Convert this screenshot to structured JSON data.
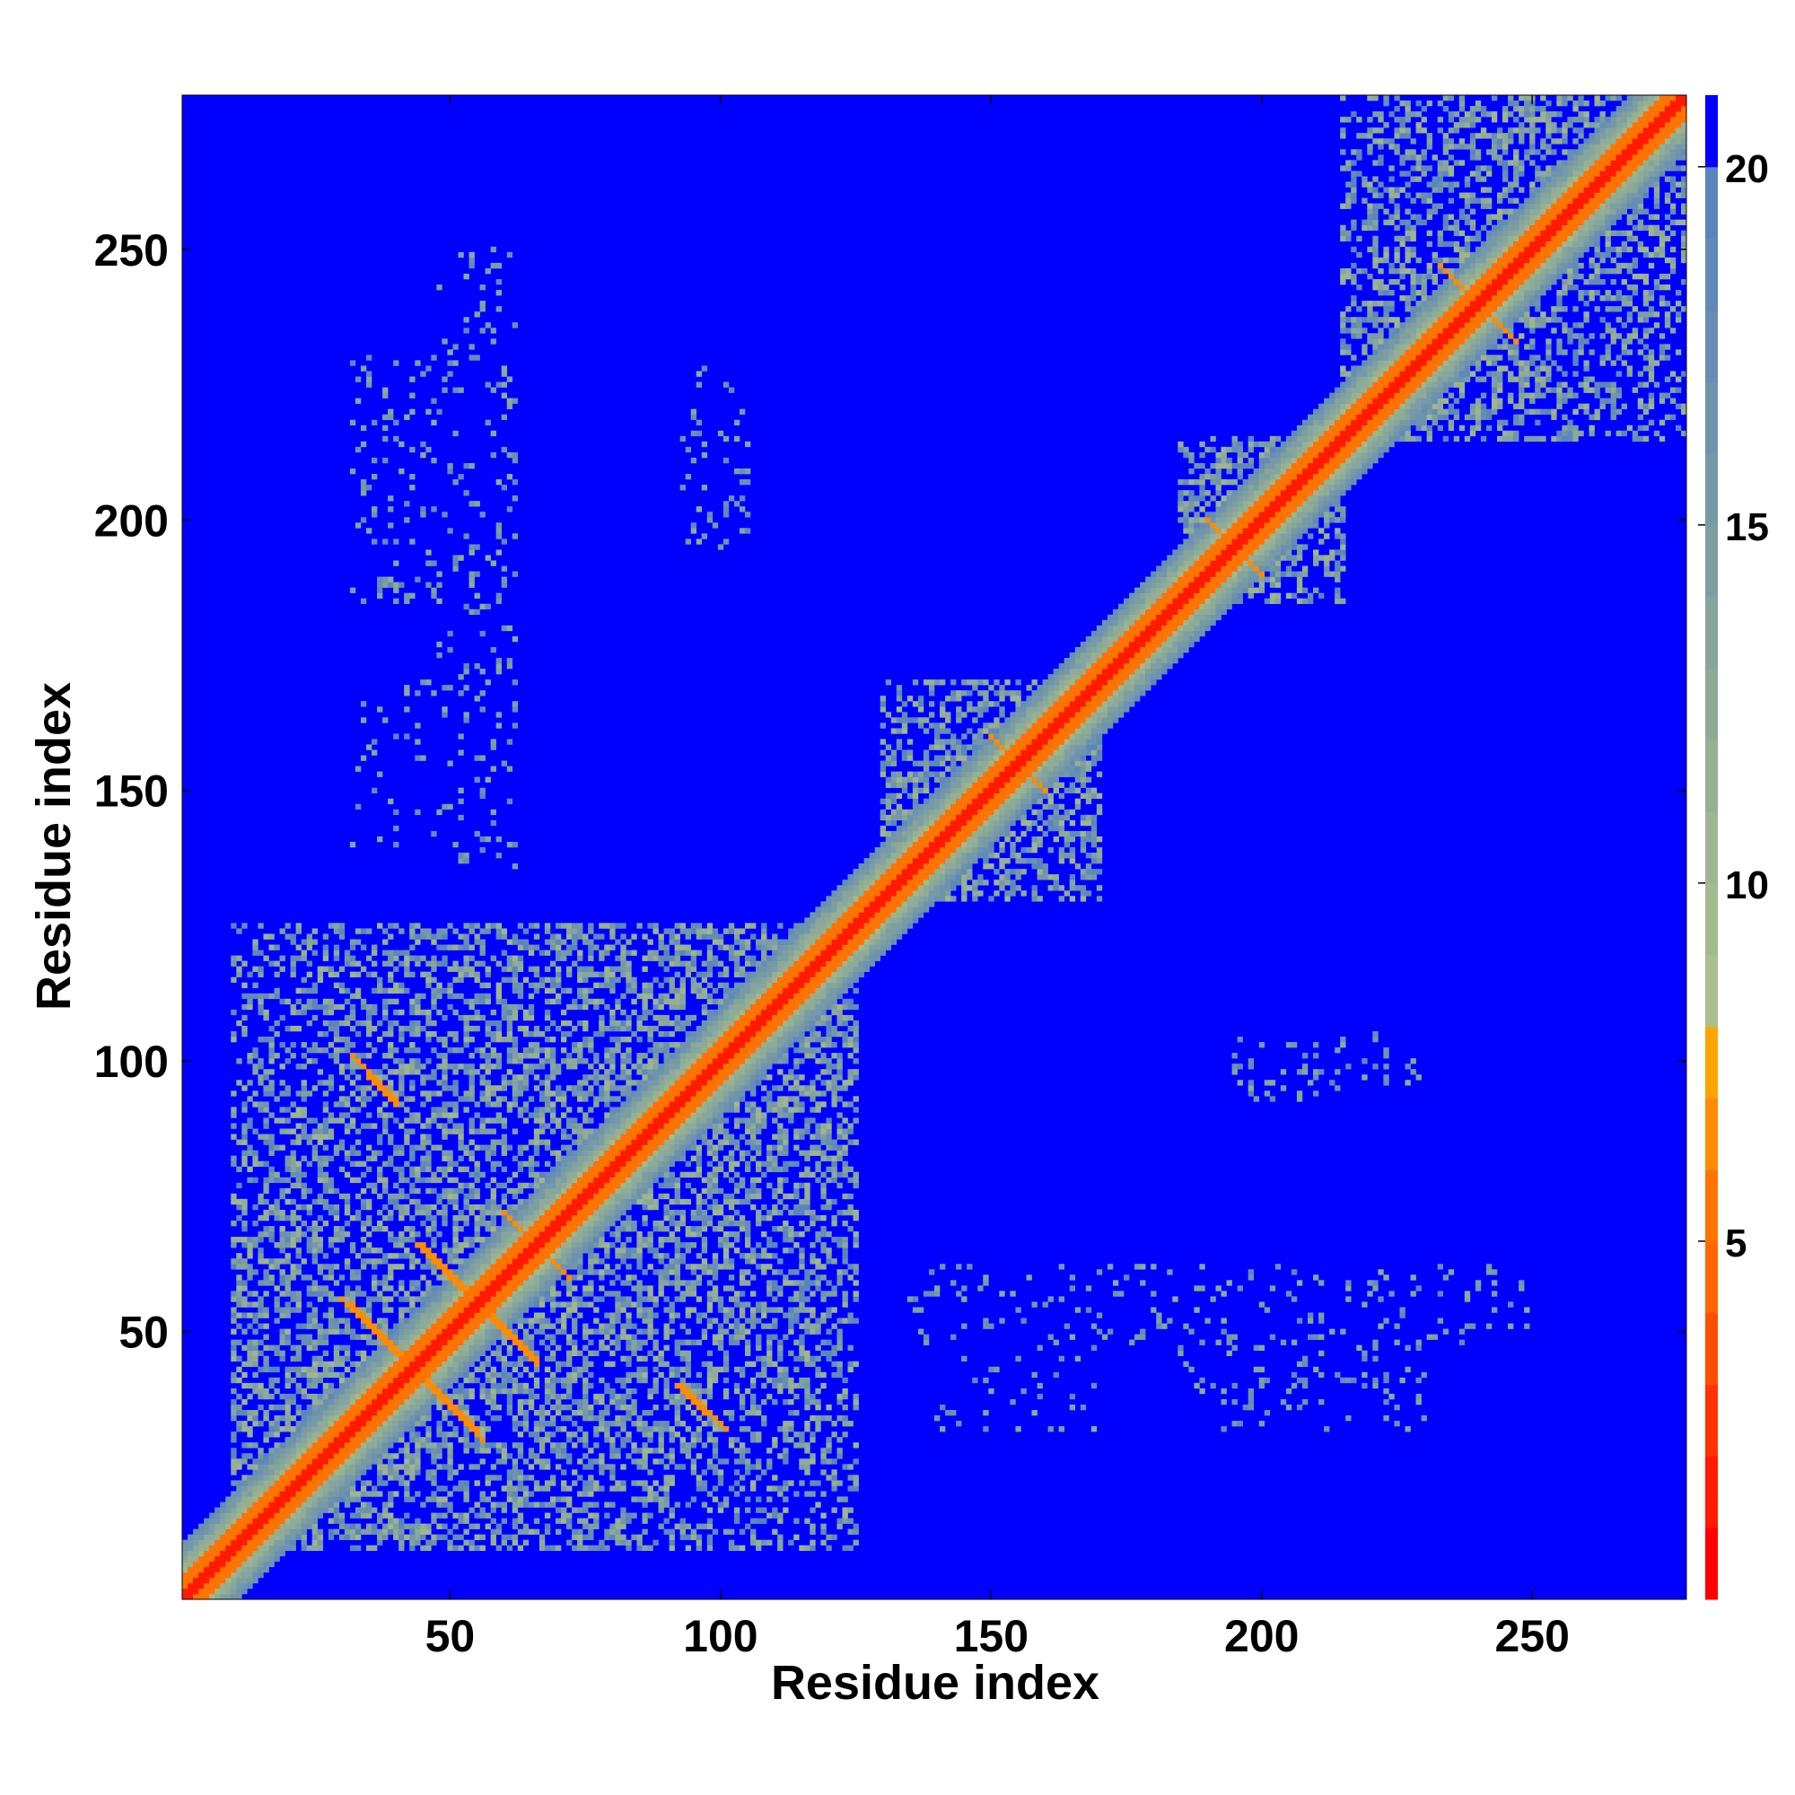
{
  "chart_data": {
    "type": "heatmap",
    "title": "",
    "xlabel": "Residue index",
    "ylabel": "Residue index",
    "xlim": [
      1,
      278
    ],
    "ylim": [
      1,
      278
    ],
    "x_ticks": [
      50,
      100,
      150,
      200,
      250
    ],
    "y_ticks": [
      50,
      100,
      150,
      200,
      250
    ],
    "x_tick_labels": [
      "50",
      "100",
      "150",
      "200",
      "250"
    ],
    "y_tick_labels": [
      "50",
      "100",
      "150",
      "200",
      "250"
    ],
    "n_residues": 278,
    "colorbar": {
      "min": 0,
      "max": 21,
      "ticks": [
        5,
        10,
        15,
        20
      ],
      "tick_labels": [
        "5",
        "10",
        "15",
        "20"
      ],
      "levels": [
        {
          "from": 0,
          "to": 1,
          "color": "#ff0000"
        },
        {
          "from": 1,
          "to": 2,
          "color": "#ff1a00"
        },
        {
          "from": 2,
          "to": 3,
          "color": "#ff3300"
        },
        {
          "from": 3,
          "to": 4,
          "color": "#ff4d00"
        },
        {
          "from": 4,
          "to": 5,
          "color": "#ff6600"
        },
        {
          "from": 5,
          "to": 6,
          "color": "#ff7300"
        },
        {
          "from": 6,
          "to": 7,
          "color": "#ff8c00"
        },
        {
          "from": 7,
          "to": 8,
          "color": "#ffa500"
        },
        {
          "from": 8,
          "to": 9,
          "color": "#a9c08c"
        },
        {
          "from": 9,
          "to": 10,
          "color": "#a2bb8e"
        },
        {
          "from": 10,
          "to": 11,
          "color": "#9db690"
        },
        {
          "from": 11,
          "to": 12,
          "color": "#96b094"
        },
        {
          "from": 12,
          "to": 13,
          "color": "#8eab98"
        },
        {
          "from": 13,
          "to": 14,
          "color": "#86a59c"
        },
        {
          "from": 14,
          "to": 15,
          "color": "#7e9fa2"
        },
        {
          "from": 15,
          "to": 16,
          "color": "#7699a8"
        },
        {
          "from": 16,
          "to": 17,
          "color": "#6e93ae"
        },
        {
          "from": 17,
          "to": 18,
          "color": "#678db4"
        },
        {
          "from": 18,
          "to": 19,
          "color": "#6088b8"
        },
        {
          "from": 19,
          "to": 20,
          "color": "#5a84bc"
        },
        {
          "from": 20,
          "to": 21,
          "color": "#0000ff"
        }
      ]
    },
    "background_value": 21,
    "diagonal_band": {
      "width_core": 1.5,
      "width_orange": 4,
      "width_green": 10
    },
    "domains": [
      {
        "start": 10,
        "end": 125,
        "density": 0.55
      },
      {
        "start": 130,
        "end": 170,
        "density": 0.6
      },
      {
        "start": 185,
        "end": 215,
        "density": 0.55
      },
      {
        "start": 215,
        "end": 278,
        "density": 0.5
      }
    ],
    "strand_contacts": [
      {
        "i_start": 32,
        "i_end": 40,
        "j_start": 101,
        "j_end": 93,
        "value": 6
      },
      {
        "i_start": 30,
        "i_end": 55,
        "j_start": 56,
        "j_end": 32,
        "value": 6
      },
      {
        "i_start": 44,
        "i_end": 66,
        "j_start": 66,
        "j_end": 45,
        "value": 6
      },
      {
        "i_start": 60,
        "i_end": 72,
        "j_start": 72,
        "j_end": 60,
        "value": 6
      },
      {
        "i_start": 92,
        "i_end": 100,
        "j_start": 40,
        "j_end": 33,
        "value": 6
      },
      {
        "i_start": 233,
        "i_end": 247,
        "j_start": 247,
        "j_end": 233,
        "value": 6
      },
      {
        "i_start": 190,
        "i_end": 200,
        "j_start": 200,
        "j_end": 190,
        "value": 6
      },
      {
        "i_start": 150,
        "i_end": 160,
        "j_start": 160,
        "j_end": 150,
        "value": 6
      }
    ],
    "sparse_blocks": [
      {
        "x": [
          32,
          62
        ],
        "y": [
          185,
          230
        ],
        "density": 0.12
      },
      {
        "x": [
          32,
          62
        ],
        "y": [
          140,
          170
        ],
        "density": 0.08
      },
      {
        "x": [
          93,
          104
        ],
        "y": [
          195,
          215
        ],
        "density": 0.15
      },
      {
        "x": [
          195,
          230
        ],
        "y": [
          95,
          105
        ],
        "density": 0.1
      },
      {
        "x": [
          135,
          250
        ],
        "y": [
          48,
          62
        ],
        "density": 0.1
      },
      {
        "x": [
          195,
          230
        ],
        "y": [
          35,
          60
        ],
        "density": 0.1
      }
    ]
  }
}
